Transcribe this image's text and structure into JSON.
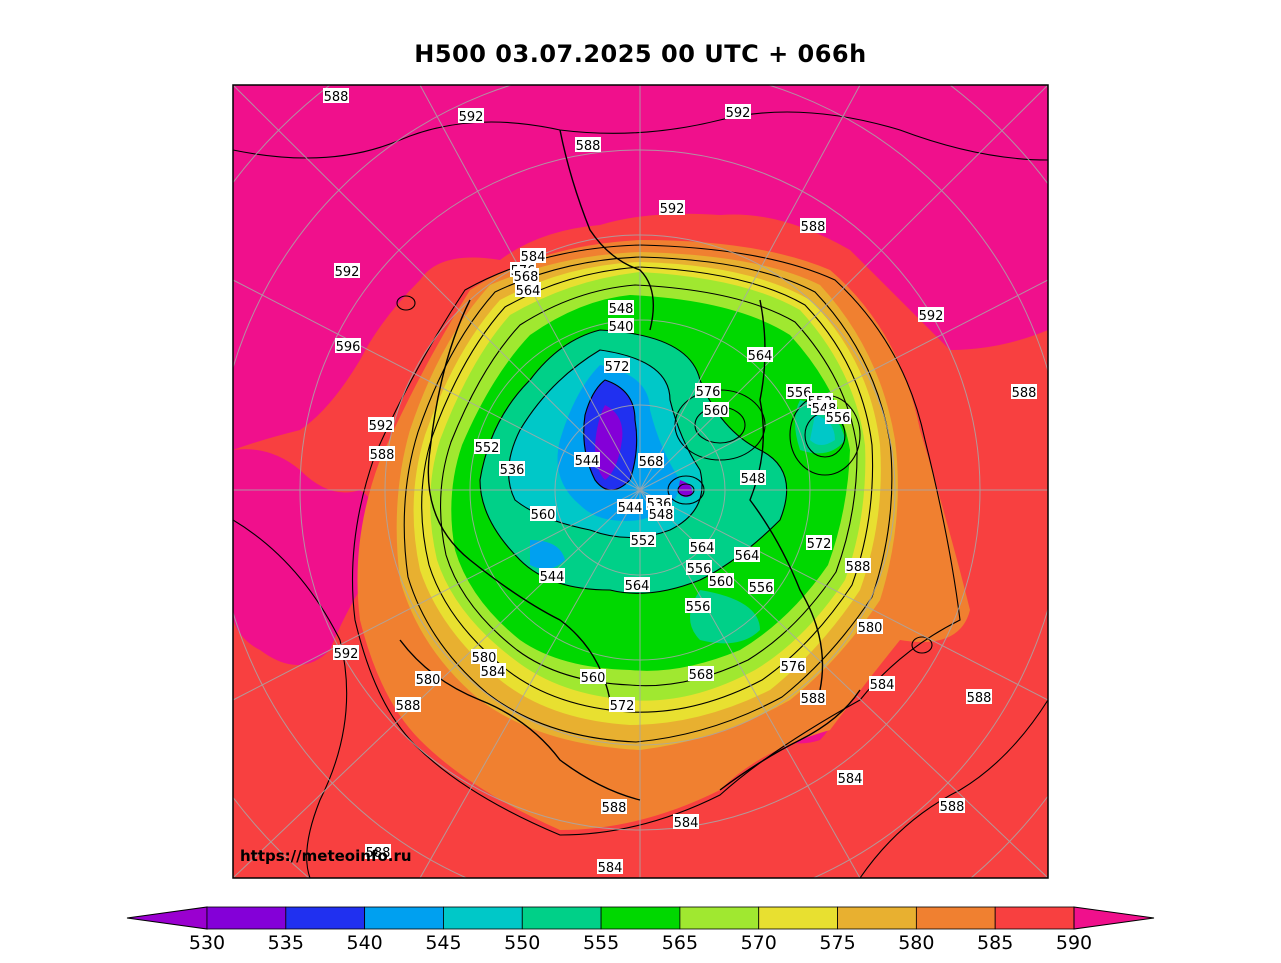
{
  "title": "H500  03.07.2025 00 UTC + 066h",
  "watermark": "https://meteoinfo.ru",
  "colorbar": {
    "ticks": [
      "530",
      "535",
      "540",
      "545",
      "550",
      "555",
      "565",
      "570",
      "575",
      "580",
      "585",
      "590"
    ],
    "colors": [
      "#8400d8",
      "#2030f0",
      "#00a0f0",
      "#00c8c8",
      "#00d088",
      "#00d800",
      "#a0e830",
      "#e8e030",
      "#e8b030",
      "#f08030",
      "#f84040"
    ],
    "under_color": "#9a00d0",
    "over_color": "#f0108c"
  },
  "isolines": [
    {
      "text": "588"
    },
    {
      "text": "592"
    },
    {
      "text": "588"
    },
    {
      "text": "592"
    },
    {
      "text": "592"
    },
    {
      "text": "588"
    },
    {
      "text": "592"
    },
    {
      "text": "592"
    },
    {
      "text": "596"
    },
    {
      "text": "588"
    },
    {
      "text": "592"
    },
    {
      "text": "588"
    },
    {
      "text": "584"
    },
    {
      "text": "576"
    },
    {
      "text": "568"
    },
    {
      "text": "564"
    },
    {
      "text": "548"
    },
    {
      "text": "540"
    },
    {
      "text": "564"
    },
    {
      "text": "572"
    },
    {
      "text": "576"
    },
    {
      "text": "560"
    },
    {
      "text": "556"
    },
    {
      "text": "552"
    },
    {
      "text": "548"
    },
    {
      "text": "556"
    },
    {
      "text": "552"
    },
    {
      "text": "536"
    },
    {
      "text": "544"
    },
    {
      "text": "568"
    },
    {
      "text": "548"
    },
    {
      "text": "536"
    },
    {
      "text": "544"
    },
    {
      "text": "548"
    },
    {
      "text": "560"
    },
    {
      "text": "552"
    },
    {
      "text": "564"
    },
    {
      "text": "564"
    },
    {
      "text": "572"
    },
    {
      "text": "588"
    },
    {
      "text": "544"
    },
    {
      "text": "564"
    },
    {
      "text": "556"
    },
    {
      "text": "560"
    },
    {
      "text": "556"
    },
    {
      "text": "556"
    },
    {
      "text": "580"
    },
    {
      "text": "592"
    },
    {
      "text": "580"
    },
    {
      "text": "580"
    },
    {
      "text": "584"
    },
    {
      "text": "560"
    },
    {
      "text": "568"
    },
    {
      "text": "576"
    },
    {
      "text": "584"
    },
    {
      "text": "588"
    },
    {
      "text": "588"
    },
    {
      "text": "572"
    },
    {
      "text": "588"
    },
    {
      "text": "584"
    },
    {
      "text": "588"
    },
    {
      "text": "584"
    },
    {
      "text": "588"
    },
    {
      "text": "584"
    },
    {
      "text": "588"
    }
  ]
}
